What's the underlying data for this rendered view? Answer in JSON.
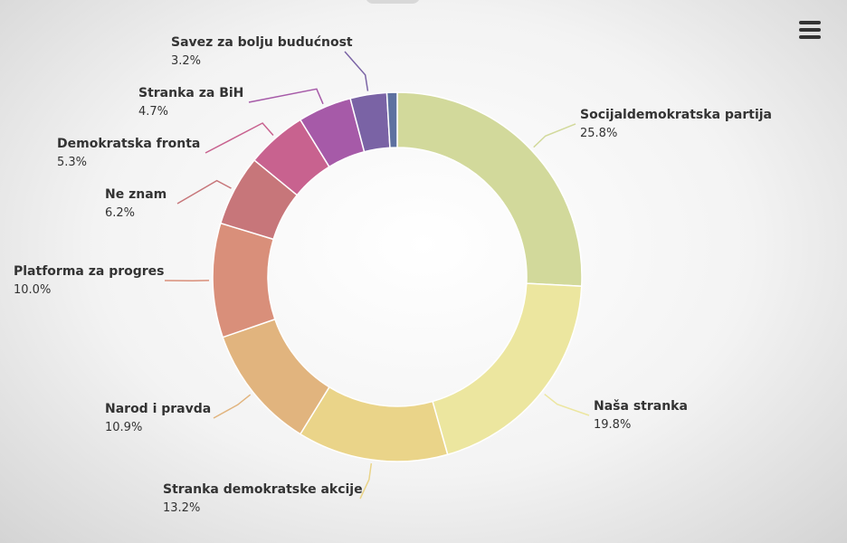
{
  "menu": {
    "icon": "hamburger-menu-icon"
  },
  "chart_data": {
    "type": "pie",
    "variant": "donut",
    "slices": [
      {
        "label": "Socijaldemokratska partija",
        "value": 25.8,
        "value_label": "25.8%",
        "color": "#d2d99b"
      },
      {
        "label": "Naša stranka",
        "value": 19.8,
        "value_label": "19.8%",
        "color": "#ece69f"
      },
      {
        "label": "Stranka demokratske akcije",
        "value": 13.2,
        "value_label": "13.2%",
        "color": "#ead489"
      },
      {
        "label": "Narod i pravda",
        "value": 10.9,
        "value_label": "10.9%",
        "color": "#e1b47e"
      },
      {
        "label": "Platforma za progres",
        "value": 10.0,
        "value_label": "10.0%",
        "color": "#d98f7a"
      },
      {
        "label": "Ne znam",
        "value": 6.2,
        "value_label": "6.2%",
        "color": "#c7767a"
      },
      {
        "label": "Demokratska fronta",
        "value": 5.3,
        "value_label": "5.3%",
        "color": "#c8628f"
      },
      {
        "label": "Stranka za BiH",
        "value": 4.7,
        "value_label": "4.7%",
        "color": "#a65aa8"
      },
      {
        "label": "Savez za bolju budućnost",
        "value": 3.2,
        "value_label": "3.2%",
        "color": "#7a63a5"
      },
      {
        "label": "",
        "value": 0.9,
        "value_label": "",
        "color": "#5e71a0"
      }
    ]
  }
}
